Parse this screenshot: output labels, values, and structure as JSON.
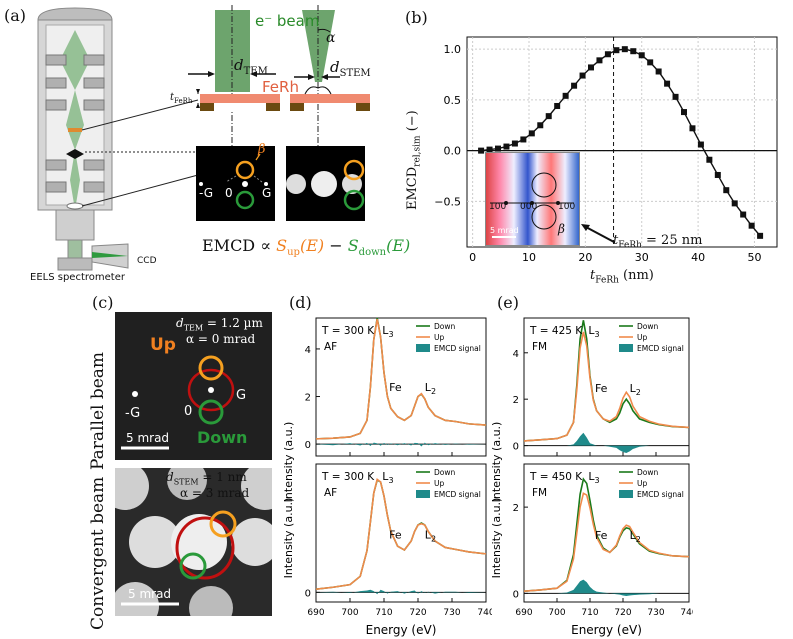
{
  "panels": {
    "a": {
      "label": "(a)",
      "ebeam_label": "e⁻ beam",
      "d_tem": "d",
      "d_tem_sub": "TEM",
      "d_stem": "d",
      "d_stem_sub": "STEM",
      "alpha": "α",
      "ferh": "FeRh",
      "t_ferh": "t",
      "t_ferh_sub": "FeRh",
      "beta": "β",
      "g_left": "-G",
      "zero": "0",
      "g_right": "G",
      "emcd_formula_prefix": "EMCD ∝ ",
      "s_up": "S",
      "s_up_sub": "up",
      "s_up_arg": "(E)",
      "minus": " − ",
      "s_down": "S",
      "s_down_sub": "down",
      "s_down_arg": "(E)",
      "ccd": "CCD",
      "eels": "EELS spectrometer"
    },
    "b": {
      "label": "(b)",
      "inset_labels": [
        "100",
        "000",
        "100"
      ],
      "inset_scale": "5 mrad",
      "inset_beta": "β",
      "annotation": "t",
      "annotation_sub": "FeRh",
      "annotation_rest": " = 25 nm"
    },
    "c": {
      "label": "(c)",
      "parallel_label": "Parallel beam",
      "convergent_label": "Convergent beam",
      "top": {
        "d": "d",
        "d_sub": "TEM",
        "d_val": " = 1.2 µm",
        "alpha": "α = 0 mrad",
        "up": "Up",
        "down": "Down",
        "g_left": "-G",
        "zero": "0",
        "g_right": "G",
        "scale": "5 mrad"
      },
      "bottom": {
        "d": "d",
        "d_sub": "STEM",
        "d_val": " = 1 nm",
        "alpha": "α = 3 mrad",
        "scale": "5 mrad"
      }
    },
    "d": {
      "label": "(d)"
    },
    "e": {
      "label": "(e)"
    }
  },
  "colors": {
    "down": "#1a7a1a",
    "up": "#f08a4b",
    "emcd": "#1f8a8a",
    "orange_circle": "#f5a020",
    "green_circle": "#2a9a3a",
    "red_ring": "#c01010"
  },
  "chart_data": [
    {
      "id": "b",
      "type": "line",
      "xlabel": "t",
      "xlabel_sub": "FeRh",
      "xlabel_unit": " (nm)",
      "ylabel": "EMCD",
      "ylabel_sub": "rel,sim",
      "ylabel_unit": " (−)",
      "xlim": [
        -1,
        54
      ],
      "ylim": [
        -0.95,
        1.12
      ],
      "xticks": [
        0,
        10,
        20,
        30,
        40,
        50
      ],
      "yticks": [
        -0.5,
        0.0,
        0.5,
        1.0
      ],
      "ytick_labels": [
        "−0.5",
        "0.0",
        "0.5",
        "1.0"
      ],
      "grid": true,
      "marker": "square",
      "vline_x": 25,
      "x": [
        1.5,
        3,
        4.5,
        6,
        7.5,
        9,
        10.5,
        12,
        13.5,
        15,
        16.5,
        18,
        19.5,
        21,
        22.5,
        24,
        25.5,
        27,
        28.5,
        30,
        31.5,
        33,
        34.5,
        36,
        37.5,
        39,
        40.5,
        42,
        43.5,
        45,
        46.5,
        48,
        49.5,
        51
      ],
      "y": [
        0.0,
        0.01,
        0.02,
        0.04,
        0.07,
        0.11,
        0.17,
        0.25,
        0.34,
        0.44,
        0.54,
        0.64,
        0.74,
        0.82,
        0.89,
        0.95,
        0.99,
        1.0,
        0.98,
        0.94,
        0.87,
        0.78,
        0.66,
        0.53,
        0.38,
        0.22,
        0.06,
        -0.09,
        -0.24,
        -0.39,
        -0.52,
        -0.63,
        -0.74,
        -0.84
      ]
    },
    {
      "id": "d",
      "type": "line",
      "xlabel": "Energy (eV)",
      "ylabel": "Intensity (a.u.)",
      "xlim": [
        690,
        740
      ],
      "xticks": [
        690,
        700,
        710,
        720,
        730,
        740
      ],
      "subplots": [
        {
          "text1": "T = 300 K",
          "text2": "AF",
          "edge_l3": "L",
          "edge_l3_sub": "3",
          "edge_fe": "Fe",
          "edge_l2": "L",
          "edge_l2_sub": "2",
          "ylim": [
            -0.5,
            5.3
          ],
          "yticks": [
            0,
            2,
            4
          ],
          "legend": [
            "Down",
            "Up",
            "EMCD signal"
          ],
          "x": [
            690,
            695,
            700,
            703,
            705,
            706,
            707,
            708,
            709,
            710,
            711,
            712,
            714,
            716,
            718,
            719,
            720,
            721,
            722,
            723,
            725,
            728,
            731,
            735,
            740
          ],
          "down": [
            0.22,
            0.25,
            0.3,
            0.45,
            1.0,
            2.4,
            4.4,
            5.3,
            4.5,
            3.0,
            2.0,
            1.5,
            1.15,
            1.0,
            1.2,
            1.6,
            2.0,
            2.1,
            1.9,
            1.55,
            1.2,
            1.0,
            0.95,
            0.85,
            0.8
          ],
          "up": [
            0.22,
            0.25,
            0.3,
            0.45,
            1.0,
            2.4,
            4.4,
            5.25,
            4.5,
            3.0,
            2.0,
            1.5,
            1.15,
            1.0,
            1.2,
            1.6,
            2.0,
            2.12,
            1.9,
            1.55,
            1.2,
            1.0,
            0.95,
            0.85,
            0.8
          ],
          "emcd": [
            0.0,
            -0.05,
            0.04,
            -0.06,
            0.05,
            -0.08,
            0.06,
            0.03,
            -0.07,
            0.05,
            -0.04,
            0.03,
            -0.05,
            0.04,
            -0.06,
            0.05,
            0.04,
            -0.1,
            0.06,
            -0.05,
            0.04,
            -0.03,
            0.02,
            -0.02,
            0.0
          ]
        },
        {
          "text1": "T = 300 K",
          "text2": "AF",
          "edge_l3": "L",
          "edge_l3_sub": "3",
          "edge_fe": "Fe",
          "edge_l2": "L",
          "edge_l2_sub": "2",
          "ylim": [
            -0.15,
            2.0
          ],
          "yticks": [
            0
          ],
          "legend": [
            "Down",
            "Up",
            "EMCD signal"
          ],
          "x": [
            690,
            695,
            700,
            703,
            705,
            706,
            707,
            708,
            709,
            710,
            711,
            712,
            714,
            716,
            718,
            719,
            720,
            721,
            722,
            723,
            725,
            728,
            731,
            735,
            740
          ],
          "down": [
            0.05,
            0.08,
            0.12,
            0.25,
            0.65,
            1.1,
            1.55,
            1.75,
            1.72,
            1.5,
            1.2,
            0.95,
            0.72,
            0.66,
            0.8,
            0.95,
            1.05,
            1.08,
            1.05,
            0.95,
            0.8,
            0.7,
            0.67,
            0.63,
            0.6
          ],
          "up": [
            0.05,
            0.08,
            0.12,
            0.25,
            0.65,
            1.1,
            1.55,
            1.76,
            1.72,
            1.5,
            1.2,
            0.95,
            0.72,
            0.66,
            0.8,
            0.95,
            1.05,
            1.07,
            1.05,
            0.95,
            0.8,
            0.7,
            0.67,
            0.63,
            0.6
          ],
          "emcd": [
            0.0,
            0.01,
            -0.01,
            0.02,
            0.03,
            0.04,
            0.02,
            -0.03,
            0.04,
            0.02,
            -0.02,
            0.01,
            0.02,
            -0.02,
            0.02,
            0.03,
            -0.02,
            0.02,
            -0.01,
            0.01,
            -0.02,
            0.01,
            0.01,
            -0.01,
            0.0
          ]
        }
      ]
    },
    {
      "id": "e",
      "type": "line",
      "xlabel": "Energy (eV)",
      "ylabel": "Intensity (a.u.)",
      "xlim": [
        690,
        740
      ],
      "xticks": [
        690,
        700,
        710,
        720,
        730,
        740
      ],
      "subplots": [
        {
          "text1": "T = 425 K",
          "text2": "FM",
          "edge_l3": "L",
          "edge_l3_sub": "3",
          "edge_fe": "Fe",
          "edge_l2": "L",
          "edge_l2_sub": "2",
          "ylim": [
            -0.45,
            5.5
          ],
          "yticks": [
            0,
            2,
            4
          ],
          "legend": [
            "Down",
            "Up",
            "EMCD signal"
          ],
          "x": [
            690,
            695,
            700,
            703,
            705,
            706,
            707,
            708,
            709,
            710,
            711,
            712,
            714,
            716,
            718,
            719,
            720,
            721,
            722,
            723,
            725,
            728,
            731,
            735,
            740
          ],
          "down": [
            0.2,
            0.25,
            0.3,
            0.45,
            1.0,
            2.6,
            4.6,
            5.4,
            4.6,
            3.0,
            2.0,
            1.5,
            1.15,
            1.0,
            1.15,
            1.4,
            1.8,
            2.0,
            1.8,
            1.5,
            1.15,
            1.0,
            0.9,
            0.82,
            0.78
          ],
          "up": [
            0.2,
            0.25,
            0.3,
            0.45,
            1.0,
            2.4,
            4.2,
            4.9,
            4.3,
            2.9,
            1.95,
            1.5,
            1.15,
            1.05,
            1.25,
            1.6,
            2.05,
            2.3,
            2.1,
            1.7,
            1.25,
            1.05,
            0.92,
            0.83,
            0.78
          ],
          "emcd": [
            0.0,
            0.0,
            0.0,
            0.0,
            0.05,
            0.2,
            0.4,
            0.55,
            0.35,
            0.1,
            0.05,
            0.0,
            0.0,
            -0.05,
            -0.1,
            -0.2,
            -0.28,
            -0.32,
            -0.25,
            -0.15,
            -0.05,
            0.0,
            0.0,
            0.0,
            0.0
          ]
        },
        {
          "text1": "T = 450 K",
          "text2": "FM",
          "edge_l3": "L",
          "edge_l3_sub": "3",
          "edge_fe": "Fe",
          "edge_l2": "L",
          "edge_l2_sub": "2",
          "ylim": [
            -0.2,
            3.0
          ],
          "yticks": [
            0,
            2
          ],
          "legend": [
            "Down",
            "Up",
            "EMCD signal"
          ],
          "x": [
            690,
            695,
            700,
            703,
            705,
            706,
            707,
            708,
            709,
            710,
            711,
            712,
            714,
            716,
            718,
            719,
            720,
            721,
            722,
            723,
            725,
            728,
            731,
            735,
            740
          ],
          "down": [
            0.05,
            0.08,
            0.12,
            0.3,
            0.9,
            1.6,
            2.3,
            2.65,
            2.55,
            2.15,
            1.7,
            1.35,
            1.05,
            0.95,
            1.1,
            1.3,
            1.45,
            1.52,
            1.5,
            1.38,
            1.15,
            0.98,
            0.92,
            0.87,
            0.85
          ],
          "up": [
            0.05,
            0.08,
            0.12,
            0.28,
            0.8,
            1.4,
            2.0,
            2.32,
            2.28,
            1.98,
            1.6,
            1.3,
            1.02,
            0.95,
            1.12,
            1.33,
            1.5,
            1.58,
            1.55,
            1.42,
            1.18,
            1.0,
            0.93,
            0.87,
            0.85
          ],
          "emcd": [
            0.0,
            0.0,
            0.0,
            0.02,
            0.08,
            0.18,
            0.28,
            0.32,
            0.26,
            0.15,
            0.08,
            0.04,
            0.02,
            0.0,
            -0.02,
            -0.03,
            -0.05,
            -0.06,
            -0.05,
            -0.04,
            -0.03,
            -0.02,
            0.0,
            0.0,
            0.0
          ]
        }
      ]
    }
  ]
}
